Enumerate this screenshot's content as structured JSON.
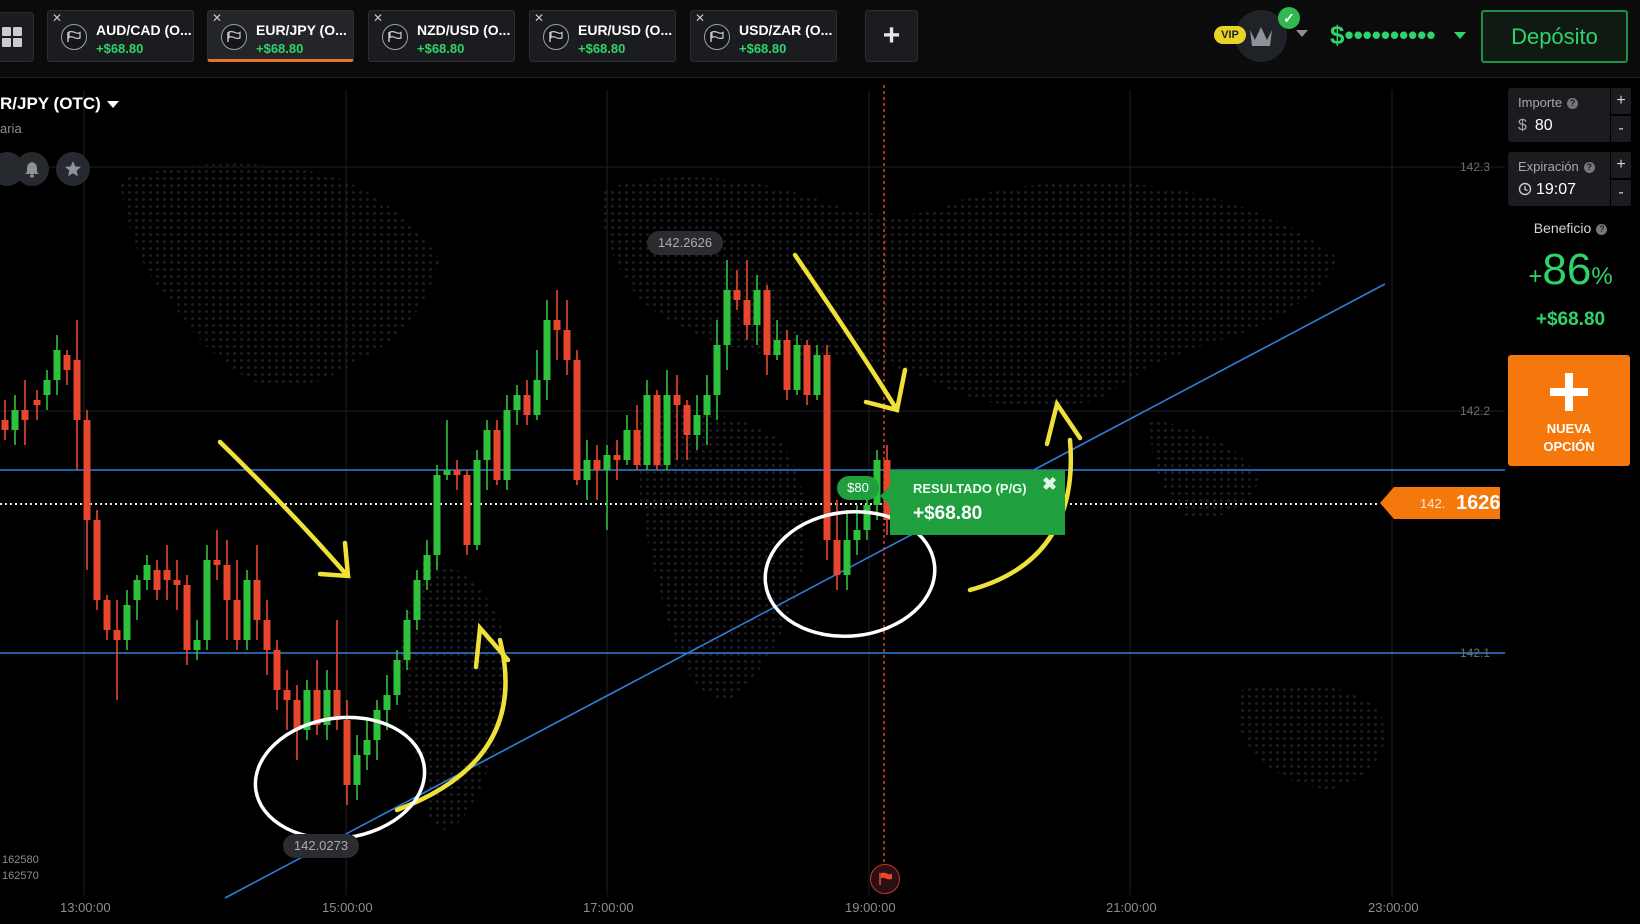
{
  "topbar": {
    "tabs": [
      {
        "name": "AUD/CAD (O...",
        "profit": "+$68.80",
        "active": false
      },
      {
        "name": "EUR/JPY (O...",
        "profit": "+$68.80",
        "active": true
      },
      {
        "name": "NZD/USD (O...",
        "profit": "+$68.80",
        "active": false
      },
      {
        "name": "EUR/USD (O...",
        "profit": "+$68.80",
        "active": false
      },
      {
        "name": "USD/ZAR (O...",
        "profit": "+$68.80",
        "active": false
      }
    ],
    "add_tab_label": "+",
    "vip_label": "VIP",
    "balance_masked": "$••••••••••",
    "deposit_label": "Depósito"
  },
  "chart_header": {
    "asset": "R/JPY (OTC)",
    "subtitle": "aria"
  },
  "chart": {
    "y_labels": [
      "142.3",
      "142.2",
      "142.1"
    ],
    "x_labels": [
      "13:00:00",
      "15:00:00",
      "17:00:00",
      "19:00:00",
      "21:00:00",
      "23:00:00"
    ],
    "high_label": "142.2626",
    "low_label": "142.0273",
    "left_values": [
      "162580",
      "162570"
    ],
    "current_price_prefix": "142.",
    "current_price_suffix": "1626",
    "bet_amount": "$80",
    "result_title": "RESULTADO (P/G)",
    "result_amount": "+$68.80",
    "result_close": "✖",
    "colors": {
      "up": "#2ec13b",
      "down": "#e8462f",
      "accent": "#f5780c",
      "trend": "#2e7fd9",
      "annotation": "#efe03a"
    }
  },
  "panel": {
    "amount_label": "Importe",
    "amount_currency": "$",
    "amount_value": "80",
    "expiry_label": "Expiración",
    "expiry_value": "19:07",
    "plus": "+",
    "minus": "-",
    "profit_label": "Beneficio",
    "profit_pct_sign": "+",
    "profit_pct": "86",
    "profit_pct_unit": "%",
    "profit_amount": "+$68.80",
    "new_option_line1": "NUEVA",
    "new_option_line2": "OPCIÓN"
  },
  "icons": {
    "grid": "grid-icon",
    "flag": "checkered-flag-icon",
    "bell": "bell-icon",
    "star": "star-icon",
    "crown": "crown-icon",
    "clock": "clock-icon",
    "question": "help-icon"
  }
}
